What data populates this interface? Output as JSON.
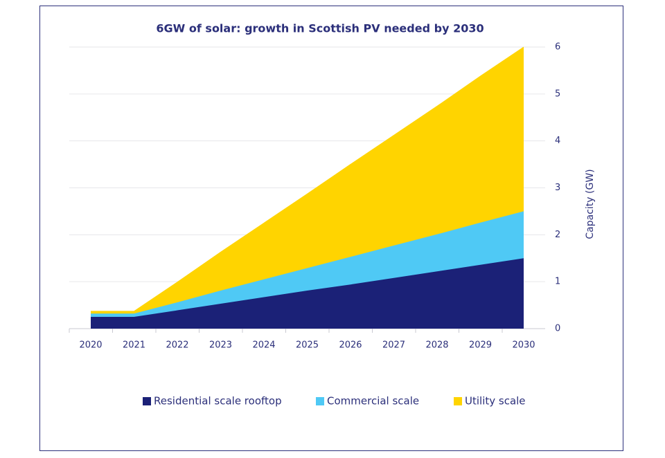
{
  "chart_data": {
    "type": "stacked-area",
    "title": "6GW of solar: growth in Scottish PV needed by 2030",
    "y_label": "Capacity (GW)",
    "categories": [
      "2020",
      "2021",
      "2022",
      "2023",
      "2024",
      "2025",
      "2026",
      "2027",
      "2028",
      "2029",
      "2030"
    ],
    "series": [
      {
        "name": "Residential scale rooftop",
        "color": "#1b2177",
        "values": [
          0.25,
          0.25,
          0.39,
          0.53,
          0.67,
          0.81,
          0.94,
          1.08,
          1.22,
          1.36,
          1.5
        ]
      },
      {
        "name": "Commercial scale",
        "color": "#4fc9f5",
        "values": [
          0.07,
          0.07,
          0.17,
          0.28,
          0.38,
          0.48,
          0.59,
          0.69,
          0.79,
          0.9,
          1.0
        ]
      },
      {
        "name": "Utility scale",
        "color": "#ffd400",
        "values": [
          0.05,
          0.05,
          0.43,
          0.82,
          1.2,
          1.58,
          1.97,
          2.35,
          2.73,
          3.12,
          3.5
        ]
      }
    ],
    "ylim": [
      0,
      6
    ],
    "yticks": [
      0,
      1,
      2,
      3,
      4,
      5,
      6
    ],
    "y_axis_side": "right",
    "grid": true
  }
}
